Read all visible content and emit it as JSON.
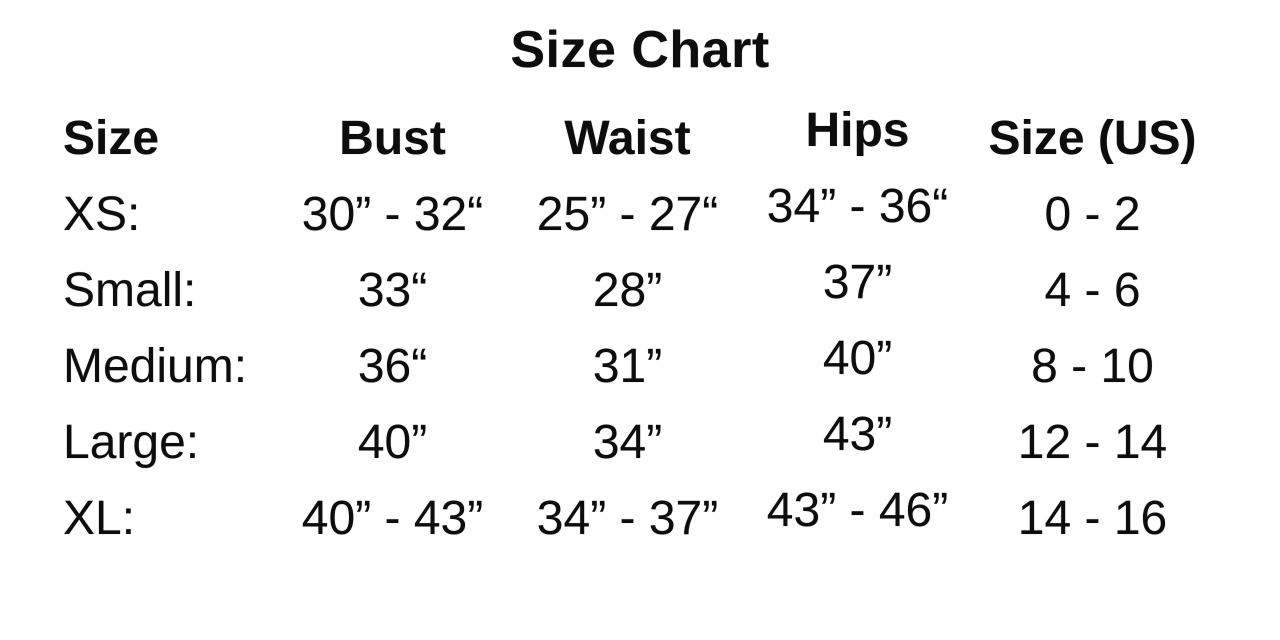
{
  "title": "Size Chart",
  "colors": {
    "background": "#ffffff",
    "text": "#0d0d0d"
  },
  "table": {
    "headers": [
      "Size",
      "Bust",
      "Waist",
      "Hips",
      "Size (US)"
    ],
    "rows": [
      {
        "label": "XS:",
        "bust": "30” - 32“",
        "waist": "25” - 27“",
        "hips": "34” - 36“",
        "size_us": "0 - 2"
      },
      {
        "label": "Small:",
        "bust": "33“",
        "waist": "28”",
        "hips": "37”",
        "size_us": "4 - 6"
      },
      {
        "label": "Medium:",
        "bust": "36“",
        "waist": "31”",
        "hips": "40”",
        "size_us": "8 - 10"
      },
      {
        "label": "Large:",
        "bust": "40”",
        "waist": "34”",
        "hips": "43”",
        "size_us": "12 - 14"
      },
      {
        "label": "XL:",
        "bust": "40” - 43”",
        "waist": "34” - 37”",
        "hips": "43” - 46”",
        "size_us": "14 - 16"
      }
    ]
  },
  "chart_data": {
    "type": "table",
    "title": "Size Chart",
    "columns": [
      "Size",
      "Bust",
      "Waist",
      "Hips",
      "Size (US)"
    ],
    "rows": [
      [
        "XS:",
        "30” - 32“",
        "25” - 27“",
        "34” - 36“",
        "0 - 2"
      ],
      [
        "Small:",
        "33“",
        "28”",
        "37”",
        "4 - 6"
      ],
      [
        "Medium:",
        "36“",
        "31”",
        "40”",
        "8 - 10"
      ],
      [
        "Large:",
        "40”",
        "34”",
        "43”",
        "12 - 14"
      ],
      [
        "XL:",
        "40” - 43”",
        "34” - 37”",
        "43” - 46”",
        "14 - 16"
      ]
    ]
  }
}
